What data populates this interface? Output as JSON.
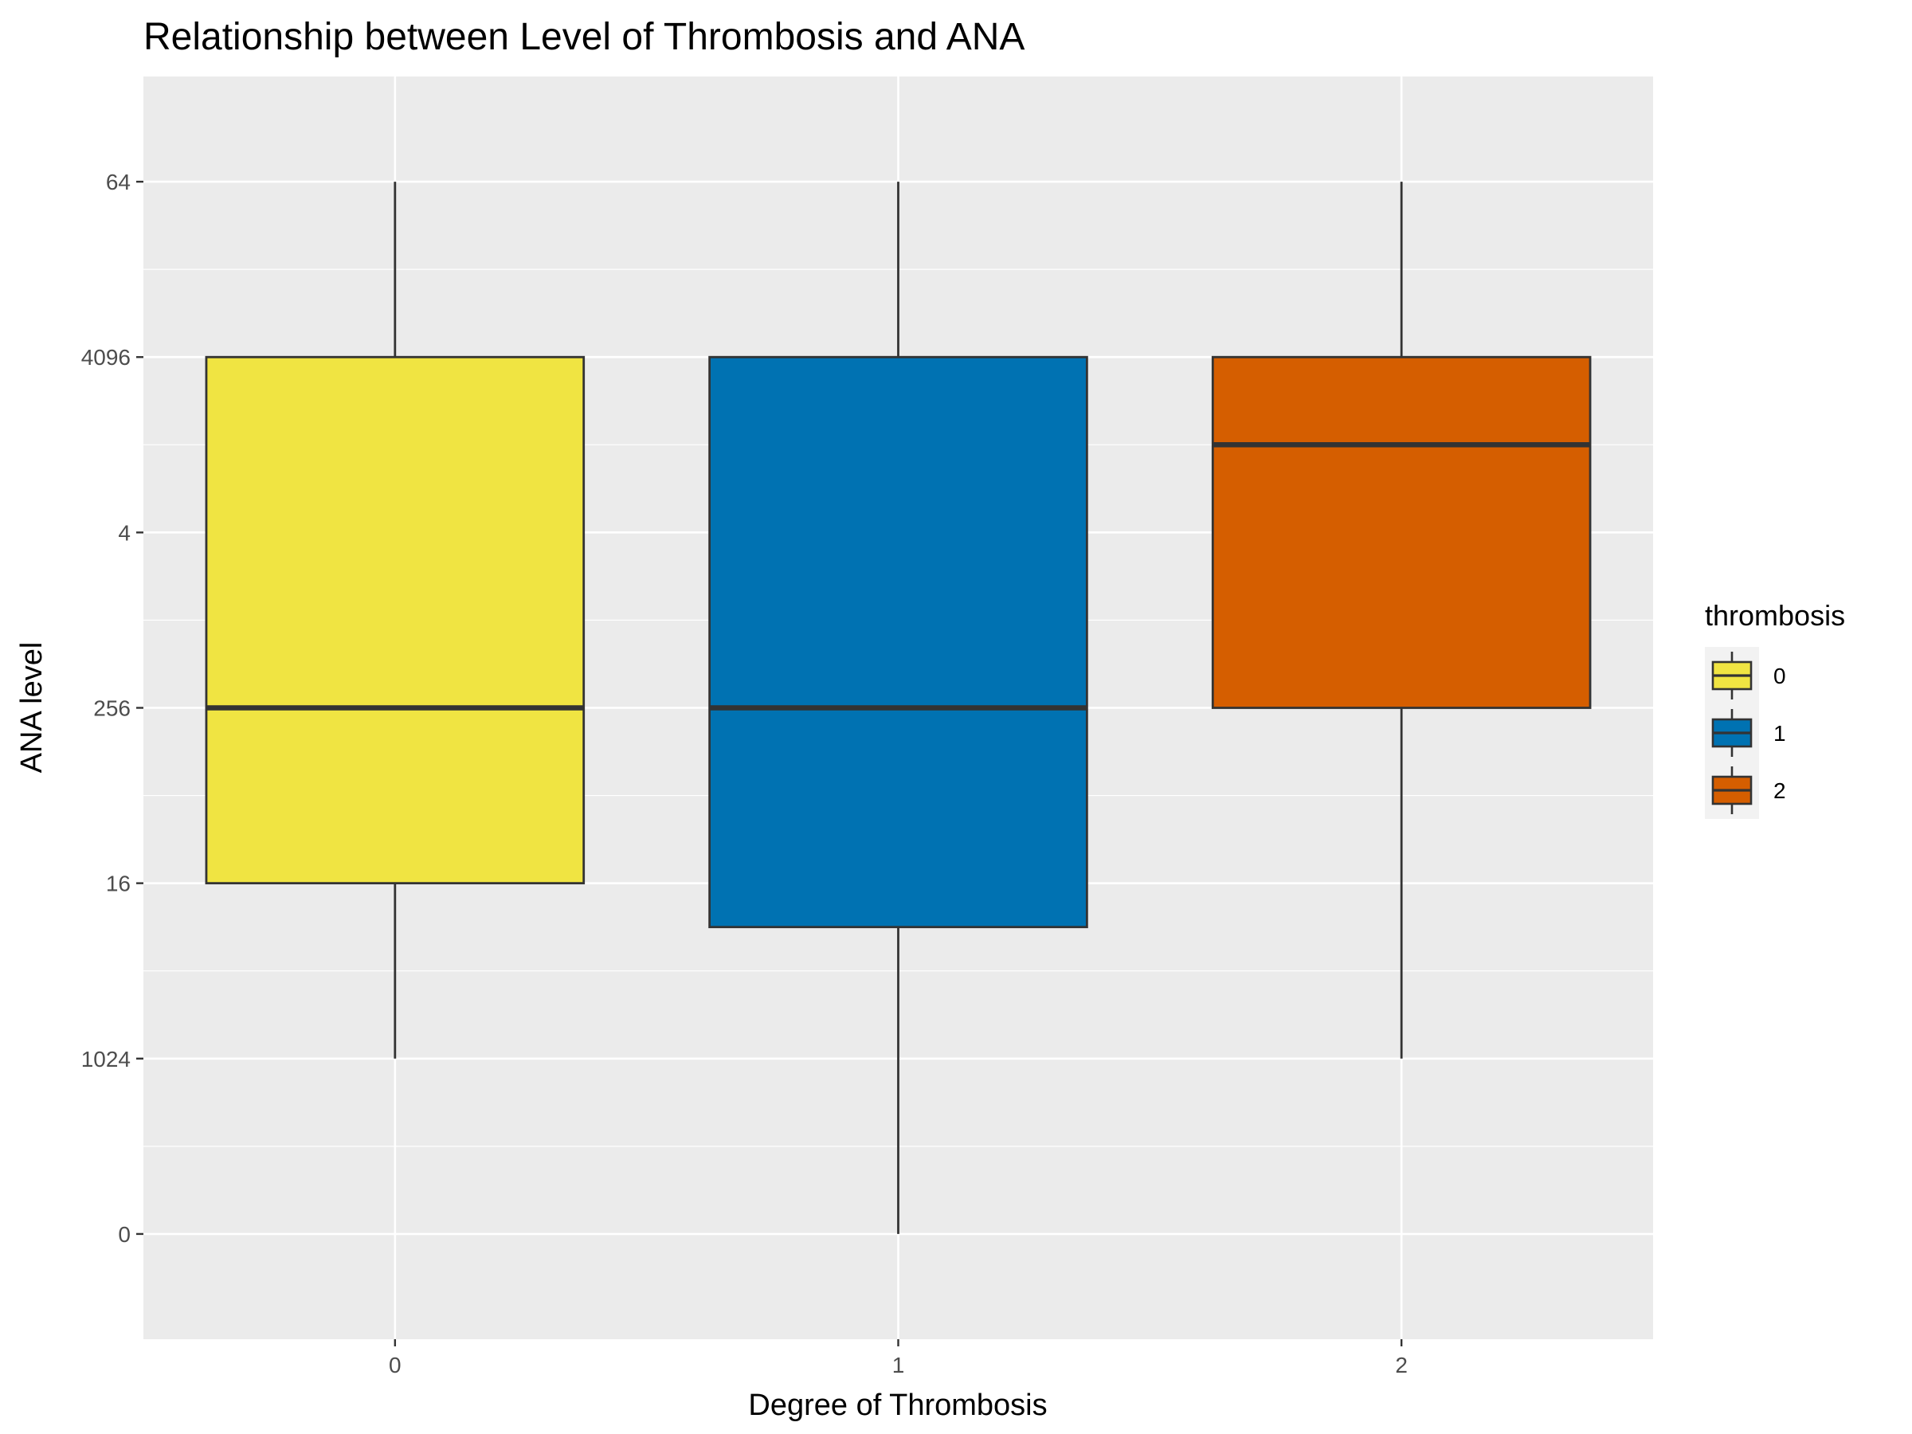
{
  "chart_data": {
    "type": "box",
    "title": "Relationship between Level of Thrombosis and ANA",
    "xlabel": "Degree of Thrombosis",
    "ylabel": "ANA level",
    "categories": [
      "0",
      "1",
      "2"
    ],
    "y_axis": {
      "scale": "categorical-ordinal",
      "ticks_top_to_bottom": [
        "64",
        "4096",
        "4",
        "256",
        "16",
        "1024",
        "0"
      ],
      "ylim": [
        -0.6,
        6.6
      ]
    },
    "grid": true,
    "legend": {
      "title": "thrombosis",
      "placement": "right",
      "entries": [
        "0",
        "1",
        "2"
      ]
    },
    "series": [
      {
        "category": "0",
        "whisker_high": "64",
        "q3": "4096",
        "median": "256",
        "q1": "16",
        "whisker_low": "1024",
        "color": "#F0E442"
      },
      {
        "category": "1",
        "whisker_high": "64",
        "q3": "4096",
        "median": "256",
        "q1_position_between": [
          "16",
          "1024"
        ],
        "q1_offset": 0.25,
        "whisker_low": "0",
        "color": "#0072B2"
      },
      {
        "category": "2",
        "whisker_high": "64",
        "q3": "4096",
        "median_position_between": [
          "4096",
          "4"
        ],
        "median_offset": 0.5,
        "q1": "256",
        "whisker_low": "1024",
        "color": "#D55E00"
      }
    ],
    "colors": {
      "panel_background": "#EBEBEB",
      "grid_line": "#FFFFFF",
      "box_outline": "#333333"
    }
  }
}
